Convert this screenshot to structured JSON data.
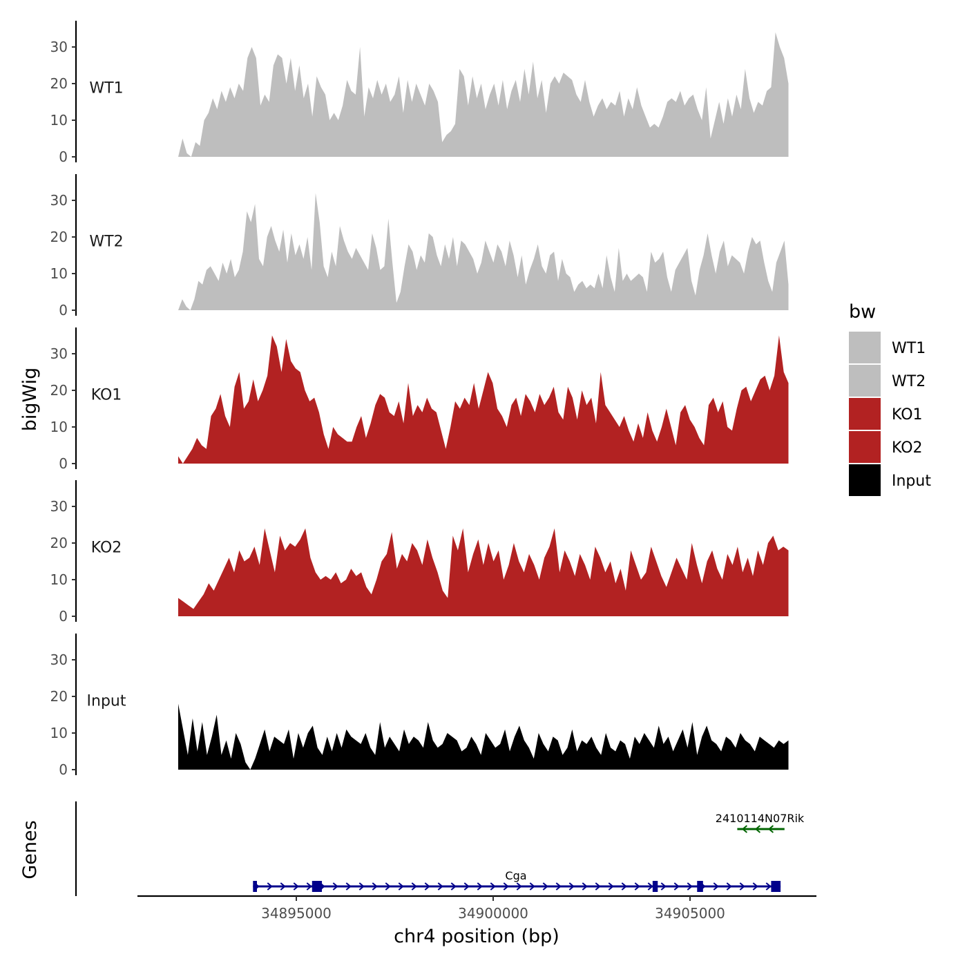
{
  "chart_data": {
    "type": "area",
    "region": {
      "chrom": "chr4",
      "start": 34892000,
      "end": 34907500
    },
    "xlabel": "chr4 position (bp)",
    "ylabel": "bigWig",
    "genes_panel_label": "Genes",
    "ylim": [
      0,
      37
    ],
    "yticks": [
      0,
      10,
      20,
      30
    ],
    "xticks": [
      {
        "value": 34895000,
        "label": "34895000"
      },
      {
        "value": 34900000,
        "label": "34900000"
      },
      {
        "value": 34905000,
        "label": "34905000"
      }
    ],
    "legend": {
      "title": "bw",
      "position": "right",
      "entries": [
        {
          "label": "WT1",
          "color": "#bebebe"
        },
        {
          "label": "WT2",
          "color": "#bebebe"
        },
        {
          "label": "KO1",
          "color": "#b22222"
        },
        {
          "label": "KO2",
          "color": "#b22222"
        },
        {
          "label": "Input",
          "color": "#000000"
        }
      ]
    },
    "series": [
      {
        "name": "WT1",
        "color": "#bebebe",
        "x_start": 34892000,
        "x_end": 34907500,
        "values": [
          0,
          5,
          1,
          0,
          4,
          3,
          10,
          12,
          16,
          13,
          18,
          15,
          19,
          16,
          20,
          18,
          27,
          30,
          27,
          14,
          17,
          15,
          25,
          28,
          27,
          20,
          27,
          18,
          25,
          16,
          20,
          11,
          22,
          19,
          17,
          10,
          12,
          10,
          14,
          21,
          18,
          17,
          30,
          11,
          19,
          16,
          21,
          17,
          20,
          15,
          17,
          22,
          12,
          21,
          15,
          20,
          17,
          14,
          20,
          18,
          15,
          4,
          6,
          7,
          9,
          24,
          22,
          14,
          22,
          16,
          20,
          13,
          17,
          20,
          14,
          21,
          13,
          18,
          21,
          15,
          24,
          17,
          26,
          16,
          21,
          12,
          20,
          22,
          20,
          23,
          22,
          21,
          17,
          15,
          21,
          15,
          11,
          14,
          16,
          13,
          15,
          14,
          18,
          11,
          16,
          13,
          19,
          14,
          11,
          8,
          9,
          8,
          11,
          15,
          16,
          15,
          18,
          14,
          16,
          17,
          13,
          10,
          19,
          5,
          10,
          15,
          9,
          16,
          11,
          17,
          13,
          24,
          16,
          12,
          15,
          14,
          18,
          19,
          34,
          30,
          27,
          20
        ]
      },
      {
        "name": "WT2",
        "color": "#bebebe",
        "x_start": 34892000,
        "x_end": 34907500,
        "values": [
          0,
          3,
          1,
          0,
          3,
          8,
          7,
          11,
          12,
          10,
          8,
          13,
          10,
          14,
          9,
          11,
          16,
          27,
          24,
          29,
          14,
          12,
          20,
          23,
          19,
          16,
          22,
          13,
          21,
          15,
          18,
          14,
          20,
          11,
          32,
          24,
          12,
          9,
          16,
          12,
          23,
          19,
          16,
          14,
          17,
          15,
          13,
          11,
          21,
          17,
          11,
          12,
          25,
          13,
          2,
          5,
          12,
          18,
          16,
          11,
          15,
          13,
          21,
          20,
          15,
          12,
          18,
          14,
          20,
          12,
          19,
          18,
          16,
          14,
          10,
          13,
          19,
          16,
          13,
          18,
          16,
          12,
          19,
          15,
          9,
          15,
          7,
          11,
          14,
          18,
          12,
          10,
          15,
          16,
          8,
          14,
          10,
          9,
          5,
          7,
          8,
          6,
          7,
          6,
          10,
          6,
          15,
          9,
          5,
          17,
          8,
          10,
          8,
          9,
          10,
          9,
          5,
          16,
          13,
          14,
          16,
          9,
          5,
          11,
          13,
          15,
          17,
          8,
          4,
          11,
          15,
          21,
          15,
          10,
          16,
          19,
          12,
          15,
          14,
          13,
          10,
          16,
          20,
          18,
          19,
          13,
          8,
          5,
          13,
          16,
          19,
          7
        ]
      },
      {
        "name": "KO1",
        "color": "#b22222",
        "x_start": 34892000,
        "x_end": 34907500,
        "values": [
          2,
          0,
          2,
          4,
          7,
          5,
          4,
          13,
          15,
          19,
          13,
          10,
          21,
          25,
          15,
          17,
          23,
          17,
          20,
          24,
          35,
          32,
          25,
          34,
          28,
          26,
          25,
          20,
          17,
          18,
          14,
          8,
          4,
          10,
          8,
          7,
          6,
          6,
          10,
          13,
          7,
          11,
          16,
          19,
          18,
          14,
          13,
          17,
          11,
          22,
          13,
          16,
          14,
          18,
          15,
          14,
          9,
          4,
          10,
          17,
          15,
          18,
          16,
          22,
          15,
          20,
          25,
          22,
          15,
          13,
          10,
          16,
          18,
          13,
          19,
          17,
          14,
          19,
          16,
          18,
          21,
          14,
          12,
          21,
          18,
          12,
          20,
          16,
          18,
          11,
          25,
          16,
          14,
          12,
          10,
          13,
          9,
          6,
          11,
          7,
          14,
          9,
          6,
          10,
          15,
          10,
          5,
          14,
          16,
          12,
          10,
          7,
          5,
          16,
          18,
          14,
          17,
          10,
          9,
          15,
          20,
          21,
          17,
          20,
          23,
          24,
          20,
          24,
          35,
          25,
          22
        ]
      },
      {
        "name": "KO2",
        "color": "#b22222",
        "x_start": 34892000,
        "x_end": 34907500,
        "values": [
          5,
          4,
          3,
          2,
          4,
          6,
          9,
          7,
          10,
          13,
          16,
          12,
          18,
          15,
          16,
          19,
          14,
          24,
          18,
          12,
          22,
          18,
          20,
          19,
          21,
          24,
          16,
          12,
          10,
          11,
          10,
          12,
          9,
          10,
          13,
          11,
          12,
          8,
          6,
          10,
          15,
          17,
          23,
          13,
          17,
          15,
          20,
          18,
          14,
          21,
          16,
          12,
          7,
          5,
          22,
          18,
          24,
          12,
          17,
          21,
          14,
          20,
          15,
          18,
          10,
          14,
          20,
          15,
          12,
          17,
          14,
          10,
          16,
          19,
          24,
          12,
          18,
          15,
          11,
          17,
          14,
          10,
          19,
          16,
          12,
          15,
          9,
          13,
          7,
          18,
          14,
          10,
          12,
          19,
          15,
          11,
          8,
          12,
          16,
          13,
          10,
          20,
          14,
          9,
          15,
          18,
          13,
          10,
          17,
          14,
          19,
          12,
          16,
          11,
          18,
          14,
          20,
          22,
          18,
          19,
          18
        ]
      },
      {
        "name": "Input",
        "color": "#000000",
        "x_start": 34892000,
        "x_end": 34907500,
        "values": [
          18,
          11,
          4,
          14,
          5,
          13,
          4,
          9,
          15,
          4,
          8,
          3,
          10,
          7,
          2,
          0,
          3,
          7,
          11,
          5,
          9,
          8,
          7,
          11,
          3,
          10,
          6,
          10,
          12,
          6,
          4,
          9,
          5,
          10,
          6,
          11,
          9,
          8,
          7,
          10,
          6,
          4,
          13,
          6,
          9,
          7,
          5,
          11,
          7,
          9,
          8,
          6,
          13,
          8,
          6,
          7,
          10,
          9,
          8,
          5,
          6,
          9,
          7,
          4,
          10,
          8,
          6,
          7,
          11,
          5,
          9,
          12,
          8,
          6,
          3,
          10,
          7,
          5,
          9,
          8,
          4,
          6,
          11,
          5,
          8,
          7,
          9,
          6,
          4,
          10,
          6,
          5,
          8,
          7,
          3,
          9,
          7,
          10,
          8,
          6,
          12,
          7,
          9,
          5,
          8,
          11,
          6,
          13,
          4,
          9,
          12,
          8,
          7,
          5,
          9,
          8,
          6,
          10,
          8,
          7,
          5,
          9,
          8,
          7,
          6,
          8,
          7,
          8
        ]
      }
    ],
    "genes": [
      {
        "name": "Cga",
        "strand": "+",
        "color": "#00008b",
        "start": 34893900,
        "end": 34907300,
        "row": 1,
        "exons": [
          [
            34893900,
            34894000
          ],
          [
            34895400,
            34895650
          ],
          [
            34904050,
            34904180
          ],
          [
            34905180,
            34905330
          ],
          [
            34907060,
            34907300
          ]
        ]
      },
      {
        "name": "2410114N07Rik",
        "strand": "-",
        "color": "#006400",
        "start": 34906200,
        "end": 34907400,
        "row": 2,
        "exons": []
      }
    ]
  }
}
